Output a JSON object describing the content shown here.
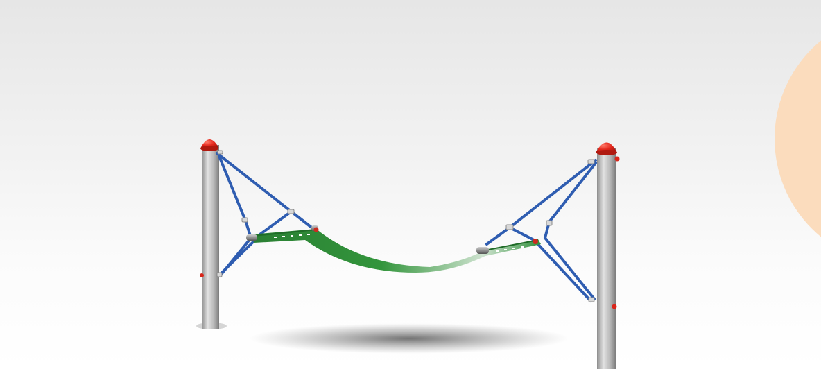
{
  "image": {
    "subject": "hammock-playground-equipment",
    "colors": {
      "background_top": "#e6e6e6",
      "background_bottom": "#ffffff",
      "post": "#b9b9b9",
      "post_cap": "#e3271c",
      "rope": "#2f5db1",
      "hammock_bed": "#2f8f3a",
      "accent_circle": "#fbdcbd"
    }
  }
}
